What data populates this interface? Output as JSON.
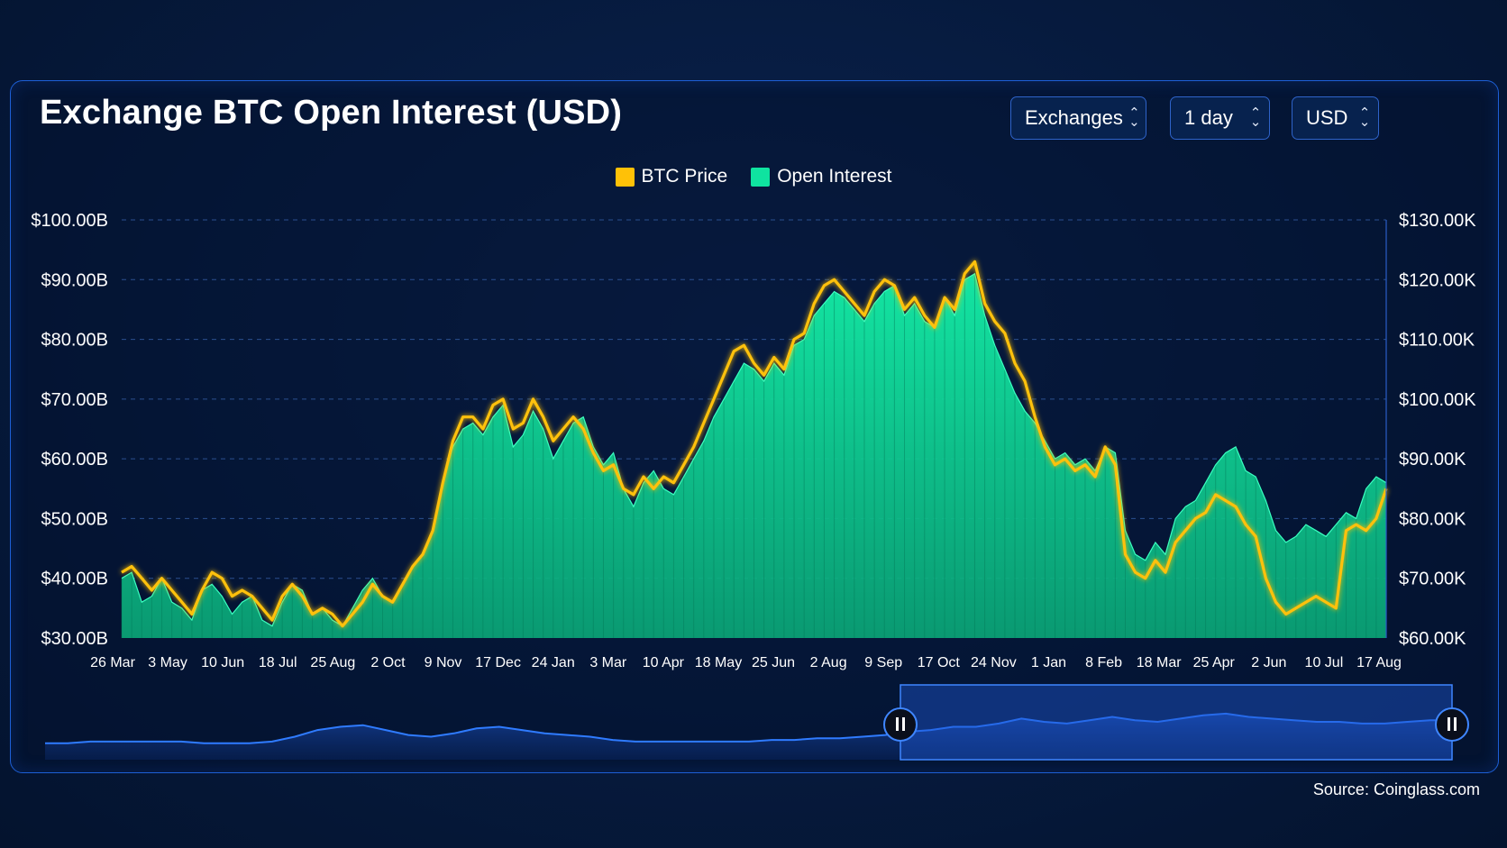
{
  "header": {
    "title": "Exchange BTC Open Interest (USD)",
    "controls": [
      {
        "label": "Exchanges"
      },
      {
        "label": "1 day"
      },
      {
        "label": "USD"
      }
    ]
  },
  "source": "Source: Coinglass.com",
  "colors": {
    "btc_price": "#ffc107",
    "open_interest": "#0fe3a0",
    "navigator_line": "#2f7bff",
    "grid": "#2b4f8f"
  },
  "chart_data": {
    "type": "area",
    "legend": [
      "BTC Price",
      "Open Interest"
    ],
    "legend_position": "top-center",
    "grid": true,
    "y_left": {
      "ticks": [
        "$100.00B",
        "$90.00B",
        "$80.00B",
        "$70.00B",
        "$60.00B",
        "$50.00B",
        "$40.00B",
        "$30.00B"
      ],
      "range": [
        30,
        100
      ],
      "unit": "B USD"
    },
    "y_right": {
      "ticks": [
        "$130.00K",
        "$120.00K",
        "$110.00K",
        "$100.00K",
        "$90.00K",
        "$80.00K",
        "$70.00K",
        "$60.00K"
      ],
      "range": [
        60,
        130
      ],
      "unit": "K USD"
    },
    "x_ticks": [
      "26 Mar",
      "3 May",
      "10 Jun",
      "18 Jul",
      "25 Aug",
      "2 Oct",
      "9 Nov",
      "17 Dec",
      "24 Jan",
      "3 Mar",
      "10 Apr",
      "18 May",
      "25 Jun",
      "2 Aug",
      "9 Sep",
      "17 Oct",
      "24 Nov",
      "1 Jan",
      "8 Feb",
      "18 Mar",
      "25 Apr",
      "2 Jun",
      "10 Jul",
      "17 Aug"
    ],
    "series": [
      {
        "name": "Open Interest",
        "axis": "left",
        "values": [
          40,
          41,
          36,
          37,
          40,
          36,
          35,
          33,
          38,
          39,
          37,
          34,
          36,
          37,
          33,
          32,
          36,
          39,
          38,
          34,
          35,
          33,
          32,
          35,
          38,
          40,
          37,
          36,
          39,
          42,
          44,
          48,
          56,
          62,
          65,
          66,
          64,
          67,
          69,
          62,
          64,
          68,
          65,
          60,
          63,
          66,
          67,
          62,
          59,
          61,
          55,
          52,
          56,
          58,
          55,
          54,
          57,
          60,
          63,
          67,
          70,
          73,
          76,
          75,
          73,
          76,
          74,
          79,
          80,
          84,
          86,
          88,
          87,
          85,
          83,
          86,
          88,
          89,
          84,
          86,
          83,
          82,
          87,
          84,
          90,
          91,
          84,
          79,
          75,
          71,
          68,
          66,
          63,
          60,
          61,
          59,
          60,
          58,
          62,
          61,
          48,
          44,
          43,
          46,
          44,
          50,
          52,
          53,
          56,
          59,
          61,
          62,
          58,
          57,
          53,
          48,
          46,
          47,
          49,
          48,
          47,
          49,
          51,
          50,
          55,
          57,
          56
        ]
      },
      {
        "name": "BTC Price",
        "axis": "right",
        "values": [
          71,
          72,
          70,
          68,
          70,
          68,
          66,
          64,
          68,
          71,
          70,
          67,
          68,
          67,
          65,
          63,
          67,
          69,
          67,
          64,
          65,
          64,
          62,
          64,
          66,
          69,
          67,
          66,
          69,
          72,
          74,
          78,
          86,
          93,
          97,
          97,
          95,
          99,
          100,
          95,
          96,
          100,
          97,
          93,
          95,
          97,
          95,
          91,
          88,
          89,
          85,
          84,
          87,
          85,
          87,
          86,
          89,
          92,
          96,
          100,
          104,
          108,
          109,
          106,
          104,
          107,
          105,
          110,
          111,
          116,
          119,
          120,
          118,
          116,
          114,
          118,
          120,
          119,
          115,
          117,
          114,
          112,
          117,
          115,
          121,
          123,
          116,
          113,
          111,
          106,
          103,
          97,
          92,
          89,
          90,
          88,
          89,
          87,
          92,
          89,
          74,
          71,
          70,
          73,
          71,
          76,
          78,
          80,
          81,
          84,
          83,
          82,
          79,
          77,
          70,
          66,
          64,
          65,
          66,
          67,
          66,
          65,
          78,
          79,
          78,
          80,
          85
        ]
      }
    ],
    "navigator": {
      "selection_start_label": "",
      "values": [
        30,
        30,
        31,
        31,
        31,
        31,
        31,
        30,
        30,
        30,
        31,
        34,
        38,
        40,
        41,
        38,
        35,
        34,
        36,
        39,
        40,
        38,
        36,
        35,
        34,
        32,
        31,
        31,
        31,
        31,
        31,
        31,
        32,
        32,
        33,
        33,
        34,
        35,
        37,
        38,
        40,
        40,
        42,
        45,
        43,
        42,
        44,
        46,
        44,
        43,
        45,
        47,
        48,
        46,
        45,
        44,
        43,
        43,
        42,
        42,
        43,
        44,
        44
      ]
    }
  }
}
